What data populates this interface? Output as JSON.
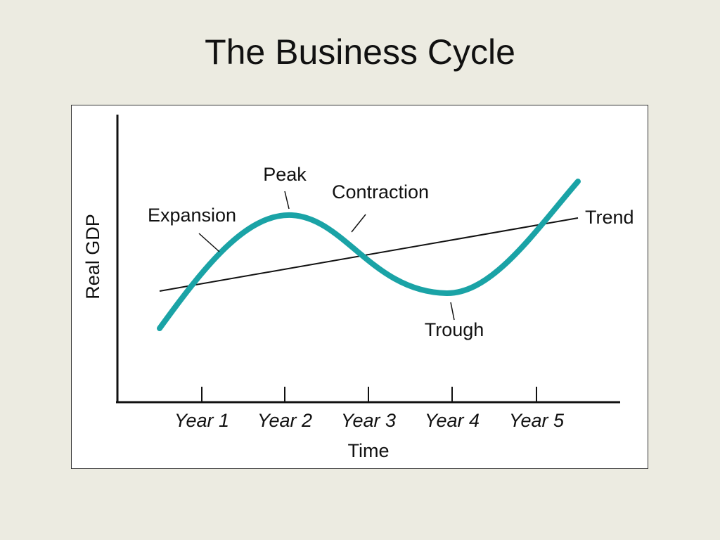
{
  "header": {
    "title": "The Business Cycle"
  },
  "diagram": {
    "y_axis_label": "Real GDP",
    "x_axis_label": "Time",
    "x_labels": [
      "Year 1",
      "Year 2",
      "Year 3",
      "Year 4",
      "Year 5"
    ],
    "annotations": {
      "expansion": "Expansion",
      "peak": "Peak",
      "contraction": "Contraction",
      "trend": "Trend",
      "trough": "Trough"
    }
  }
}
